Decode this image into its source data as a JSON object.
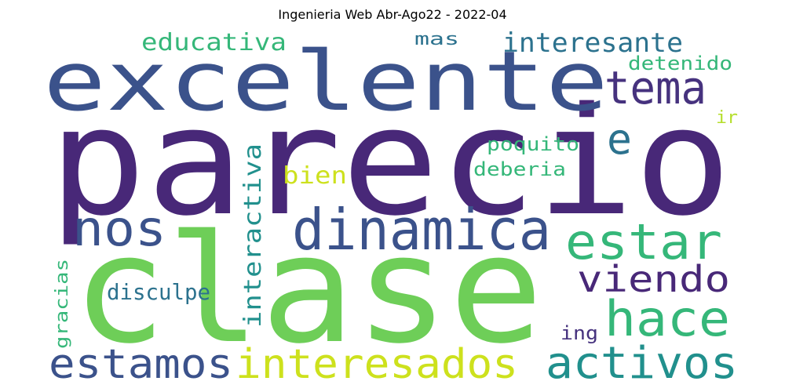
{
  "title": "Ingenieria Web Abr-Ago22 - 2022-04",
  "words": {
    "parecio": "parecio",
    "clase": "clase",
    "excelente": "excelente",
    "dinamica": "dinamica",
    "tema": "tema",
    "estar": "estar",
    "nos": "nos",
    "viendo": "viendo",
    "hace": "hace",
    "activos": "activos",
    "estamos": "estamos",
    "interesados": "interesados",
    "interesante": "interesante",
    "educativa": "educativa",
    "e": "e",
    "mas": "mas",
    "detenido": "detenido",
    "ir": "ir",
    "poquito": "poquito",
    "deberia": "deberia",
    "bien": "bien",
    "interactiva": "interactiva",
    "disculpe": "disculpe",
    "gracias": "gracias",
    "ing": "ing"
  },
  "colors": {
    "dark_purple": "#482878",
    "purple": "#46327e",
    "blue": "#3b528b",
    "teal": "#2c728e",
    "cyan": "#21908d",
    "green": "#35b779",
    "light_green": "#6ece58",
    "yellow_green": "#b5de2b"
  }
}
